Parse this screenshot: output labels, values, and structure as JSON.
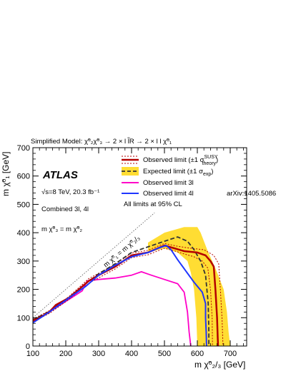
{
  "chart_data": {
    "type": "line",
    "title": "Simplified Model: χ̃⁰₂χ̃⁰₃ → 2 × l l̃R → 2 × l l χ̃⁰₁",
    "experiment": "ATLAS",
    "energy_lumi": "√s=8 TeV, 20.3 fb⁻¹",
    "channels": "Combined 3l, 4l",
    "mass_condition": "m χ̃⁰₃ = m χ̃⁰₂",
    "diagonal_label": "m χ̃⁰₁ = m χ̃⁰₂/₃",
    "xlabel": "m χ̃⁰₂/₃ [GeV]",
    "ylabel": "m χ̃⁰₁ [GeV]",
    "xlim": [
      100,
      750
    ],
    "ylim": [
      0,
      700
    ],
    "x_ticks": [
      100,
      200,
      300,
      400,
      500,
      600,
      700
    ],
    "y_ticks": [
      0,
      100,
      200,
      300,
      400,
      500,
      600,
      700
    ],
    "legend": {
      "observed": "Observed limit (±1 σ",
      "observed_sup": "SUSY",
      "observed_sub": "theory",
      "expected": "Expected limit (±1 σ",
      "expected_sub": "exp",
      "obs3l": "Observed limit 3l",
      "obs4l": "Observed limit 4l",
      "obs4l_ref": "arXiv:1405.5086",
      "cl_note": "All limits at 95% CL"
    },
    "series": [
      {
        "name": "Observed limit",
        "color": "#b40000",
        "points": [
          [
            100,
            90
          ],
          [
            120,
            100
          ],
          [
            150,
            120
          ],
          [
            170,
            145
          ],
          [
            210,
            170
          ],
          [
            250,
            210
          ],
          [
            270,
            230
          ],
          [
            300,
            250
          ],
          [
            350,
            280
          ],
          [
            400,
            320
          ],
          [
            450,
            330
          ],
          [
            500,
            355
          ],
          [
            530,
            345
          ],
          [
            560,
            335
          ],
          [
            600,
            330
          ],
          [
            625,
            320
          ],
          [
            640,
            300
          ],
          [
            650,
            280
          ],
          [
            655,
            200
          ],
          [
            660,
            100
          ],
          [
            662,
            30
          ],
          [
            663,
            0
          ]
        ]
      },
      {
        "name": "Observed limit (+1 σ theory)",
        "color": "#b40000",
        "points": [
          [
            100,
            95
          ],
          [
            150,
            125
          ],
          [
            210,
            175
          ],
          [
            270,
            238
          ],
          [
            350,
            288
          ],
          [
            400,
            328
          ],
          [
            450,
            338
          ],
          [
            500,
            362
          ],
          [
            540,
            352
          ],
          [
            580,
            345
          ],
          [
            620,
            340
          ],
          [
            650,
            320
          ],
          [
            665,
            290
          ],
          [
            670,
            200
          ],
          [
            675,
            100
          ],
          [
            678,
            0
          ]
        ]
      },
      {
        "name": "Observed limit (-1 σ theory)",
        "color": "#b40000",
        "points": [
          [
            100,
            85
          ],
          [
            150,
            115
          ],
          [
            210,
            165
          ],
          [
            270,
            222
          ],
          [
            350,
            272
          ],
          [
            400,
            312
          ],
          [
            450,
            322
          ],
          [
            500,
            345
          ],
          [
            530,
            336
          ],
          [
            560,
            325
          ],
          [
            590,
            315
          ],
          [
            615,
            300
          ],
          [
            632,
            275
          ],
          [
            640,
            200
          ],
          [
            645,
            100
          ],
          [
            646,
            0
          ]
        ]
      },
      {
        "name": "Expected limit",
        "color": "#333333",
        "points": [
          [
            100,
            92
          ],
          [
            150,
            122
          ],
          [
            210,
            172
          ],
          [
            260,
            220
          ],
          [
            300,
            255
          ],
          [
            350,
            290
          ],
          [
            400,
            330
          ],
          [
            450,
            350
          ],
          [
            500,
            370
          ],
          [
            540,
            385
          ],
          [
            570,
            370
          ],
          [
            590,
            340
          ],
          [
            610,
            300
          ],
          [
            625,
            250
          ],
          [
            633,
            150
          ],
          [
            635,
            50
          ],
          [
            635,
            0
          ]
        ]
      },
      {
        "name": "Observed limit 3l",
        "color": "#ff00c8",
        "points": [
          [
            100,
            88
          ],
          [
            150,
            120
          ],
          [
            210,
            165
          ],
          [
            250,
            195
          ],
          [
            265,
            230
          ],
          [
            300,
            235
          ],
          [
            350,
            240
          ],
          [
            400,
            250
          ],
          [
            430,
            262
          ],
          [
            460,
            250
          ],
          [
            500,
            235
          ],
          [
            540,
            220
          ],
          [
            560,
            190
          ],
          [
            570,
            120
          ],
          [
            575,
            50
          ],
          [
            580,
            0
          ]
        ]
      },
      {
        "name": "Observed limit 4l",
        "color": "#1f36ff",
        "points": [
          [
            100,
            82
          ],
          [
            150,
            120
          ],
          [
            210,
            170
          ],
          [
            260,
            210
          ],
          [
            300,
            250
          ],
          [
            350,
            285
          ],
          [
            400,
            315
          ],
          [
            450,
            330
          ],
          [
            480,
            345
          ],
          [
            505,
            355
          ],
          [
            520,
            340
          ],
          [
            540,
            305
          ],
          [
            565,
            265
          ],
          [
            590,
            225
          ],
          [
            615,
            190
          ],
          [
            625,
            150
          ],
          [
            625,
            100
          ],
          [
            627,
            50
          ],
          [
            628,
            0
          ]
        ]
      }
    ],
    "expected_band": {
      "name": "±1 σ exp",
      "color": "#ffdd33",
      "upper": [
        [
          450,
          365
        ],
        [
          500,
          400
        ],
        [
          560,
          420
        ],
        [
          600,
          420
        ],
        [
          610,
          400
        ],
        [
          630,
          340
        ],
        [
          660,
          260
        ],
        [
          680,
          200
        ],
        [
          690,
          120
        ],
        [
          695,
          50
        ],
        [
          700,
          0
        ]
      ],
      "lower": [
        [
          450,
          330
        ],
        [
          500,
          345
        ],
        [
          540,
          330
        ],
        [
          570,
          300
        ],
        [
          580,
          260
        ],
        [
          590,
          200
        ],
        [
          597,
          100
        ],
        [
          600,
          0
        ]
      ]
    }
  }
}
